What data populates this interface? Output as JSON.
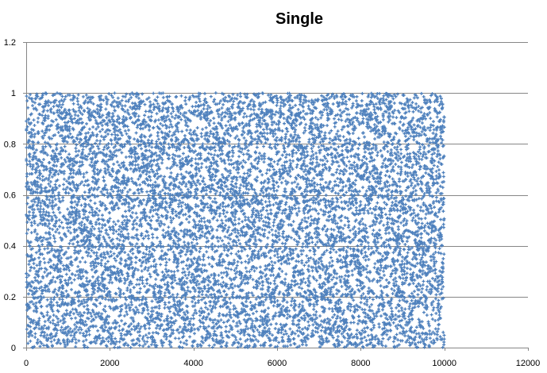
{
  "chart_data": {
    "type": "scatter",
    "title": "Single",
    "xlabel": "",
    "ylabel": "",
    "xlim": [
      0,
      12000
    ],
    "ylim": [
      0,
      1.2
    ],
    "x_ticks": [
      0,
      2000,
      4000,
      6000,
      8000,
      10000,
      12000
    ],
    "y_ticks": [
      0,
      0.2,
      0.4,
      0.6,
      0.8,
      1,
      1.2
    ],
    "x_tick_labels": [
      "0",
      "2000",
      "4000",
      "6000",
      "8000",
      "10000",
      "12000"
    ],
    "y_tick_labels": [
      "0",
      "0.2",
      "0.4",
      "0.6",
      "0.8",
      "1",
      "1.2"
    ],
    "grid": {
      "horizontal": true,
      "vertical": false
    },
    "legend": "none",
    "marker": "plus",
    "series": [
      {
        "point_count": 10000,
        "x_range": [
          1,
          10000
        ],
        "x_step": 1,
        "y_distribution": "uniform",
        "y_range": [
          0,
          1
        ],
        "color": "#4F81BD"
      }
    ]
  }
}
